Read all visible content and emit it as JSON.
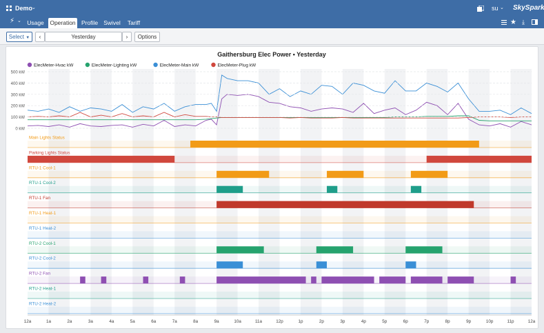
{
  "topbar": {
    "project": "Demo",
    "user": "su",
    "brand": "SkySpark"
  },
  "nav": {
    "tabs": [
      "Usage",
      "Operation",
      "Profile",
      "Swivel",
      "Tariff"
    ],
    "active": "Operation"
  },
  "toolbar": {
    "select_label": "Select",
    "date_label": "Yesterday",
    "options_label": "Options"
  },
  "colors": {
    "header": "#3e6da6",
    "purple": "#8e4fb2",
    "green": "#26a36e",
    "blue": "#3a8fd6",
    "red": "#d0473d",
    "orange": "#f29b17",
    "teal": "#1f9e8a",
    "darkred": "#c0392b"
  },
  "chart_data": [
    {
      "type": "line",
      "title": "Gaithersburg Elec Power • Yesterday",
      "x_unit": "hours",
      "x": [
        0,
        0.5,
        1,
        1.5,
        2,
        2.5,
        3,
        3.5,
        4,
        4.5,
        5,
        5.5,
        6,
        6.5,
        7,
        7.5,
        8,
        8.5,
        8.75,
        9,
        9.25,
        9.5,
        10,
        10.5,
        11,
        11.5,
        12,
        12.5,
        13,
        13.5,
        14,
        14.5,
        15,
        15.5,
        16,
        16.5,
        17,
        17.5,
        18,
        18.5,
        19,
        19.5,
        20,
        20.5,
        21,
        21.5,
        22,
        22.5,
        23,
        23.5,
        24
      ],
      "ylim": [
        0,
        500
      ],
      "yticks": [
        "0 kW",
        "100 kW",
        "200 kW",
        "300 kW",
        "400 kW",
        "500 kW"
      ],
      "xticks": [
        "12a",
        "1a",
        "2a",
        "3a",
        "4a",
        "5a",
        "6a",
        "7a",
        "8a",
        "9a",
        "10a",
        "11a",
        "12p",
        "1p",
        "2p",
        "3p",
        "4p",
        "5p",
        "6p",
        "7p",
        "8p",
        "9p",
        "10p",
        "11p",
        "12a"
      ],
      "legend_position": "top-left",
      "series": [
        {
          "name": "ElecMeter-Hvac kW",
          "color": "#8e4fb2",
          "values": [
            20,
            25,
            15,
            30,
            10,
            40,
            20,
            15,
            25,
            30,
            10,
            35,
            20,
            70,
            15,
            30,
            20,
            70,
            80,
            30,
            260,
            300,
            290,
            300,
            280,
            230,
            220,
            190,
            180,
            150,
            170,
            180,
            170,
            140,
            220,
            130,
            160,
            180,
            120,
            160,
            230,
            200,
            120,
            220,
            80,
            30,
            20,
            40,
            10,
            60,
            30
          ]
        },
        {
          "name": "ElecMeter-Lighting kW",
          "color": "#26a36e",
          "values": [
            75,
            75,
            75,
            75,
            75,
            75,
            75,
            75,
            75,
            75,
            75,
            75,
            75,
            75,
            75,
            75,
            75,
            80,
            85,
            90,
            95,
            95,
            95,
            95,
            95,
            95,
            95,
            95,
            95,
            95,
            95,
            95,
            95,
            95,
            95,
            95,
            95,
            100,
            100,
            100,
            105,
            105,
            105,
            110,
            110,
            70,
            65,
            65,
            65,
            65,
            65
          ]
        },
        {
          "name": "ElecMeter-Main kW",
          "color": "#3a8fd6",
          "values": [
            160,
            150,
            170,
            140,
            190,
            150,
            180,
            170,
            150,
            210,
            140,
            190,
            170,
            220,
            150,
            190,
            210,
            210,
            220,
            150,
            470,
            440,
            420,
            420,
            400,
            300,
            350,
            280,
            330,
            300,
            380,
            370,
            300,
            400,
            380,
            330,
            310,
            420,
            330,
            330,
            400,
            370,
            320,
            400,
            260,
            150,
            150,
            160,
            120,
            180,
            130
          ]
        },
        {
          "name": "ElecMeter-Plug kW",
          "color": "#d0473d",
          "values": [
            100,
            105,
            100,
            110,
            100,
            140,
            100,
            115,
            100,
            130,
            100,
            110,
            100,
            140,
            100,
            120,
            105,
            105,
            100,
            100,
            95,
            95,
            95,
            95,
            95,
            95,
            95,
            90,
            95,
            90,
            90,
            90,
            95,
            90,
            90,
            90,
            90,
            90,
            90,
            90,
            90,
            90,
            90,
            90,
            95,
            100,
            100,
            100,
            95,
            100,
            100
          ]
        }
      ]
    },
    {
      "type": "timeline",
      "rows": [
        {
          "name": "Main Lights Status",
          "color": "#f29b17",
          "spans": [
            [
              7.75,
              21.5
            ]
          ]
        },
        {
          "name": "Parking Lights Status",
          "color": "#d0473d",
          "spans": [
            [
              0,
              7
            ],
            [
              19,
              24
            ]
          ]
        },
        {
          "name": "RTU-1 Cool-1",
          "color": "#f29b17",
          "spans": [
            [
              9,
              11.5
            ],
            [
              14.25,
              16
            ],
            [
              18.25,
              20
            ]
          ]
        },
        {
          "name": "RTU-1 Cool-2",
          "color": "#1f9e8a",
          "spans": [
            [
              9,
              10.25
            ],
            [
              14.25,
              14.75
            ],
            [
              18.25,
              18.75
            ]
          ]
        },
        {
          "name": "RTU-1 Fan",
          "color": "#c0392b",
          "spans": [
            [
              9,
              21.25
            ]
          ]
        },
        {
          "name": "RTU-1 Heat-1",
          "color": "#f29b17",
          "spans": []
        },
        {
          "name": "RTU-1 Heat-2",
          "color": "#3a8fd6",
          "spans": []
        },
        {
          "name": "RTU-2 Cool-1",
          "color": "#26a36e",
          "spans": [
            [
              9,
              11.25
            ],
            [
              13.75,
              15.5
            ],
            [
              18,
              19.75
            ]
          ]
        },
        {
          "name": "RTU-2 Cool-2",
          "color": "#3a8fd6",
          "spans": [
            [
              9,
              10.25
            ],
            [
              13.75,
              14.25
            ],
            [
              18,
              18.5
            ]
          ]
        },
        {
          "name": "RTU-2 Fan",
          "color": "#8e4fb2",
          "spans": [
            [
              2.5,
              2.75
            ],
            [
              3.5,
              3.75
            ],
            [
              5.5,
              5.75
            ],
            [
              7.25,
              7.5
            ],
            [
              9,
              13.25
            ],
            [
              13.5,
              13.75
            ],
            [
              14,
              16.5
            ],
            [
              16.75,
              18
            ],
            [
              18.25,
              19.75
            ],
            [
              20,
              21.25
            ],
            [
              23,
              23.25
            ]
          ]
        },
        {
          "name": "RTU-2 Heat-1",
          "color": "#1f9e8a",
          "spans": []
        },
        {
          "name": "RTU-2 Heat-2",
          "color": "#3a8fd6",
          "spans": []
        }
      ]
    }
  ]
}
